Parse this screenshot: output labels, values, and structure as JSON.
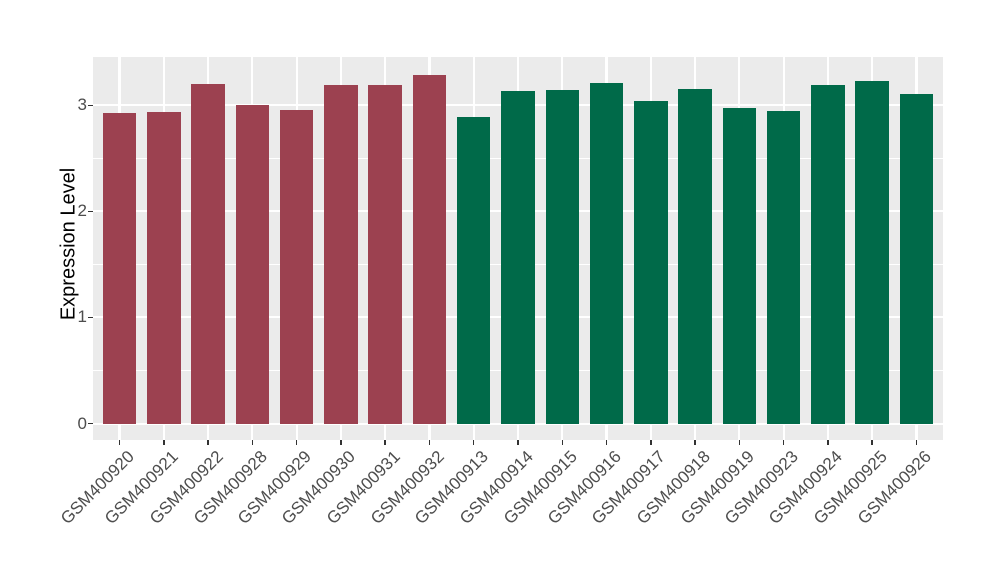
{
  "figure": {
    "background": "#FFFFFF",
    "panel_background": "#EBEBEB",
    "grid_color": "#FFFFFF",
    "tick_color": "#333333",
    "tick_label_color": "#4D4D4D"
  },
  "chart_data": {
    "type": "bar",
    "title": "",
    "xlabel": "",
    "ylabel": "Expression Level",
    "categories": [
      "GSM400920",
      "GSM400921",
      "GSM400922",
      "GSM400928",
      "GSM400929",
      "GSM400930",
      "GSM400931",
      "GSM400932",
      "GSM400913",
      "GSM400914",
      "GSM400915",
      "GSM400916",
      "GSM400917",
      "GSM400918",
      "GSM400919",
      "GSM400923",
      "GSM400924",
      "GSM400925",
      "GSM400926"
    ],
    "values": [
      2.93,
      2.94,
      3.2,
      3.0,
      2.96,
      3.19,
      3.19,
      3.29,
      2.89,
      3.13,
      3.14,
      3.21,
      3.04,
      3.15,
      2.97,
      2.95,
      3.19,
      3.23,
      3.11
    ],
    "bar_groups": [
      "group_1",
      "group_1",
      "group_1",
      "group_1",
      "group_1",
      "group_1",
      "group_1",
      "group_1",
      "group_2",
      "group_2",
      "group_2",
      "group_2",
      "group_2",
      "group_2",
      "group_2",
      "group_2",
      "group_2",
      "group_2",
      "group_2"
    ],
    "group_colors": {
      "group_1": "#9C4150",
      "group_2": "#006A49"
    },
    "y_ticks": [
      0,
      1,
      2,
      3
    ],
    "y_minor_ticks": [
      0.5,
      1.5,
      2.5
    ],
    "ylim": [
      -0.155,
      3.455
    ],
    "x_label_angle": -45,
    "grid": true,
    "legend_position": "none"
  }
}
